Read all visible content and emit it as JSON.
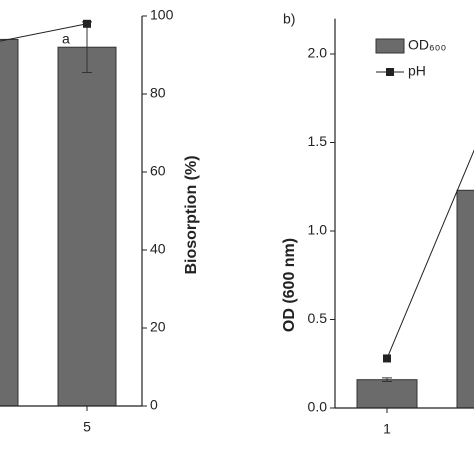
{
  "chart_data": [
    {
      "type": "bar",
      "categories": [
        null,
        "5"
      ],
      "series": [
        {
          "name": null,
          "type": "bar",
          "color": "#6b6b6b",
          "values": [
            94,
            92
          ],
          "errors": [
            null,
            6.5
          ]
        },
        {
          "name": null,
          "type": "line",
          "color": "#222222",
          "values": [
            93,
            98
          ]
        }
      ],
      "y_label": "Biosorption (%)",
      "annotations": [
        "a"
      ],
      "ylim": [
        0,
        100
      ],
      "yticks": [
        0,
        20,
        40,
        60,
        80,
        100
      ]
    },
    {
      "type": "bar",
      "panel_label": "b)",
      "categories": [
        "1",
        null
      ],
      "series": [
        {
          "name": "OD₆₀₀",
          "type": "bar",
          "color": "#6b6b6b",
          "values": [
            0.16,
            1.23
          ],
          "errors": [
            0.01,
            null
          ]
        },
        {
          "name": "pH",
          "type": "line",
          "color": "#222222",
          "values": [
            0.28,
            1.63
          ]
        }
      ],
      "y_label": "OD (600 nm)",
      "ylim": [
        0,
        2.2
      ],
      "yticks": [
        {
          "value": 0,
          "label": "0.0"
        },
        0.5,
        {
          "value": 1,
          "label": "1.0"
        },
        1.5,
        {
          "value": 2,
          "label": "2.0"
        }
      ]
    }
  ]
}
